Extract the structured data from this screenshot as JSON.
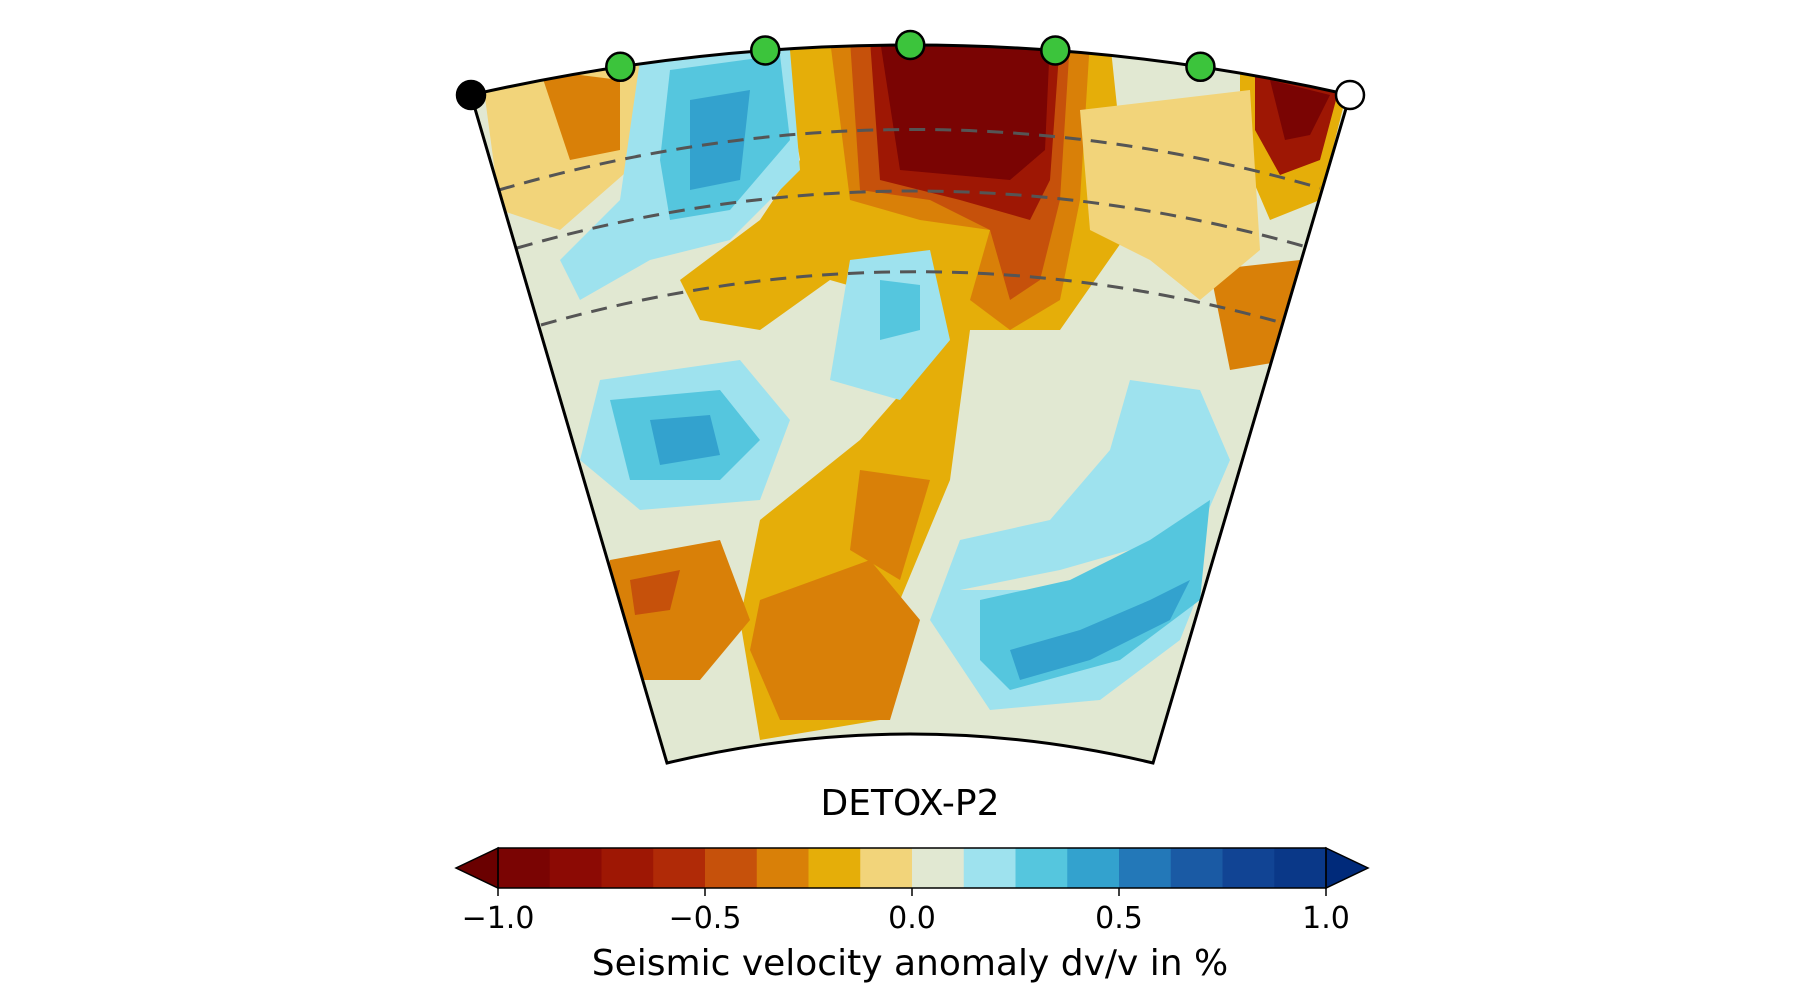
{
  "chart_data": {
    "type": "heatmap",
    "title": "DETOX-P2",
    "colorbar": {
      "label": "Seismic velocity anomaly dv/v in %",
      "min": -1.0,
      "max": 1.0,
      "extend": "both",
      "ticks": [
        -1.0,
        -0.5,
        0.0,
        0.5,
        1.0
      ],
      "tick_labels": [
        "−1.0",
        "−0.5",
        "0.0",
        "0.5",
        "1.0"
      ],
      "levels": [
        -1.0,
        -0.875,
        -0.75,
        -0.625,
        -0.5,
        -0.375,
        -0.25,
        -0.125,
        0.0,
        0.125,
        0.25,
        0.375,
        0.5,
        0.625,
        0.75,
        0.875,
        1.0
      ],
      "colors": [
        "#7a0403",
        "#8c0a04",
        "#9e1704",
        "#b02a07",
        "#c6510b",
        "#d98008",
        "#e5ae09",
        "#f2d47a",
        "#e1e8d2",
        "#9ee2ee",
        "#55c6de",
        "#33a2ce",
        "#2378b8",
        "#1a5aa4",
        "#114494",
        "#0a3888",
        "#063180"
      ],
      "under_color": "#6a0000",
      "over_color": "#002a7a"
    },
    "section": {
      "depth_contours": 3,
      "station_markers": [
        {
          "name": "start",
          "color": "#000000"
        },
        {
          "name": "station-1",
          "color": "#3cc43c"
        },
        {
          "name": "station-2",
          "color": "#3cc43c"
        },
        {
          "name": "station-3",
          "color": "#3cc43c"
        },
        {
          "name": "station-4",
          "color": "#3cc43c"
        },
        {
          "name": "station-5",
          "color": "#3cc43c"
        },
        {
          "name": "end",
          "color": "#ffffff"
        }
      ]
    }
  }
}
